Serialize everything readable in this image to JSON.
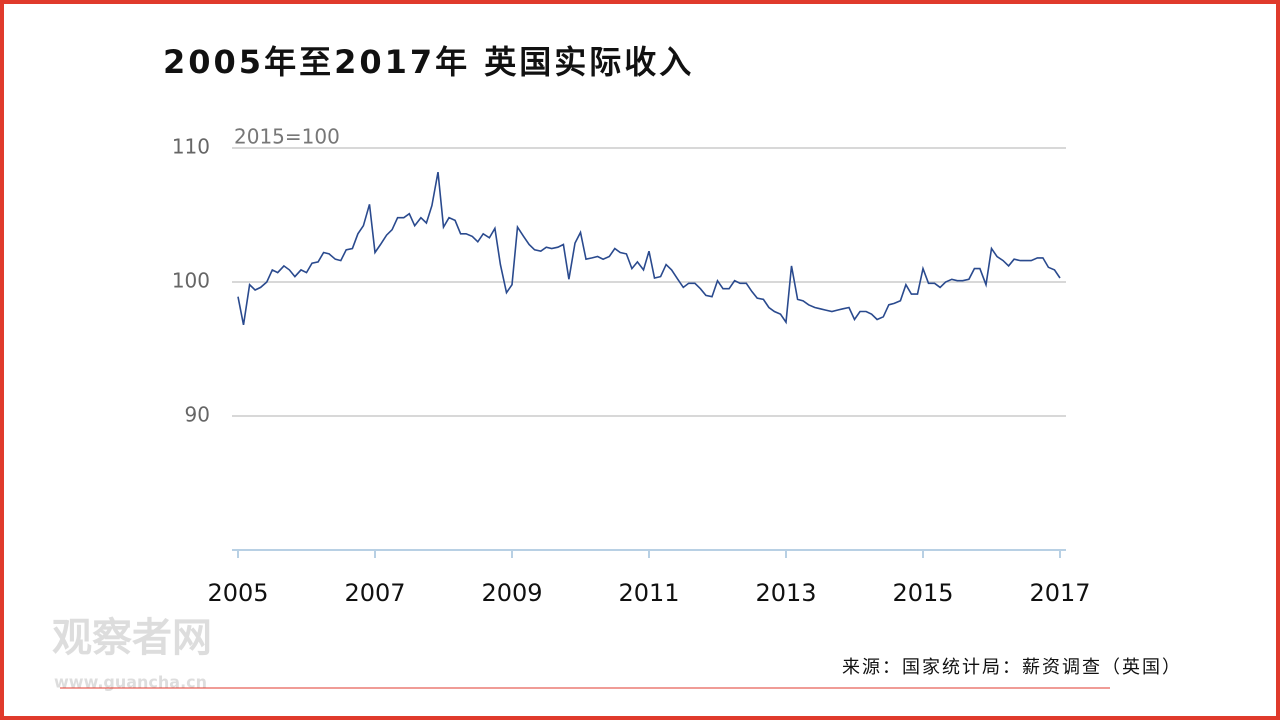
{
  "chart_data": {
    "type": "line",
    "title": "2005年至2017年 英国实际收入",
    "annotation": "2015=100",
    "source": "来源：国家统计局：薪资调查（英国）",
    "watermark": "观察者网",
    "watermark_url": "www.guancha.cn",
    "color": "#2a4a8e",
    "grid": true,
    "x": [
      2005,
      2005.08,
      2005.17,
      2005.25,
      2005.33,
      2005.42,
      2005.5,
      2005.58,
      2005.67,
      2005.75,
      2005.83,
      2005.92,
      2006,
      2006.08,
      2006.17,
      2006.25,
      2006.33,
      2006.42,
      2006.5,
      2006.58,
      2006.67,
      2006.75,
      2006.83,
      2006.92,
      2007,
      2007.08,
      2007.17,
      2007.25,
      2007.33,
      2007.42,
      2007.5,
      2007.58,
      2007.67,
      2007.75,
      2007.83,
      2007.92,
      2008,
      2008.08,
      2008.17,
      2008.25,
      2008.33,
      2008.42,
      2008.5,
      2008.58,
      2008.67,
      2008.75,
      2008.83,
      2008.92,
      2009,
      2009.08,
      2009.17,
      2009.25,
      2009.33,
      2009.42,
      2009.5,
      2009.58,
      2009.67,
      2009.75,
      2009.83,
      2009.92,
      2010,
      2010.08,
      2010.17,
      2010.25,
      2010.33,
      2010.42,
      2010.5,
      2010.58,
      2010.67,
      2010.75,
      2010.83,
      2010.92,
      2011,
      2011.08,
      2011.17,
      2011.25,
      2011.33,
      2011.42,
      2011.5,
      2011.58,
      2011.67,
      2011.75,
      2011.83,
      2011.92,
      2012,
      2012.08,
      2012.17,
      2012.25,
      2012.33,
      2012.42,
      2012.5,
      2012.58,
      2012.67,
      2012.75,
      2012.83,
      2012.92,
      2013,
      2013.08,
      2013.17,
      2013.25,
      2013.33,
      2013.42,
      2013.5,
      2013.58,
      2013.67,
      2013.75,
      2013.83,
      2013.92,
      2014,
      2014.08,
      2014.17,
      2014.25,
      2014.33,
      2014.42,
      2014.5,
      2014.58,
      2014.67,
      2014.75,
      2014.83,
      2014.92,
      2015,
      2015.08,
      2015.17,
      2015.25,
      2015.33,
      2015.42,
      2015.5,
      2015.58,
      2015.67,
      2015.75,
      2015.83,
      2015.92,
      2016,
      2016.08,
      2016.17,
      2016.25,
      2016.33,
      2016.42,
      2016.5,
      2016.58,
      2016.67,
      2016.75,
      2016.83,
      2016.92,
      2017
    ],
    "values": [
      98.9,
      96.8,
      99.8,
      99.4,
      99.6,
      100.0,
      100.9,
      100.7,
      101.2,
      100.9,
      100.4,
      100.9,
      100.7,
      101.4,
      101.5,
      102.2,
      102.1,
      101.7,
      101.6,
      102.4,
      102.5,
      103.6,
      104.2,
      105.8,
      102.2,
      102.8,
      103.5,
      103.9,
      104.8,
      104.8,
      105.1,
      104.2,
      104.8,
      104.4,
      105.7,
      108.2,
      104.1,
      104.8,
      104.6,
      103.6,
      103.6,
      103.4,
      103.0,
      103.6,
      103.3,
      104.0,
      101.3,
      99.2,
      99.8,
      104.1,
      103.4,
      102.8,
      102.4,
      102.3,
      102.6,
      102.5,
      102.6,
      102.8,
      100.2,
      102.9,
      103.7,
      101.7,
      101.8,
      101.9,
      101.7,
      101.9,
      102.5,
      102.2,
      102.1,
      101.0,
      101.5,
      100.9,
      102.3,
      100.3,
      100.4,
      101.3,
      100.9,
      100.2,
      99.6,
      99.9,
      99.9,
      99.5,
      99.0,
      98.9,
      100.1,
      99.5,
      99.5,
      100.1,
      99.9,
      99.9,
      99.3,
      98.8,
      98.7,
      98.1,
      97.8,
      97.6,
      97.0,
      101.2,
      98.7,
      98.6,
      98.3,
      98.1,
      98.0,
      97.9,
      97.8,
      97.9,
      98.0,
      98.1,
      97.2,
      97.8,
      97.8,
      97.6,
      97.2,
      97.4,
      98.3,
      98.4,
      98.6,
      99.8,
      99.1,
      99.1,
      101.0,
      99.9,
      99.9,
      99.6,
      100.0,
      100.2,
      100.1,
      100.1,
      100.2,
      101.0,
      101.0,
      99.8,
      102.5,
      101.9,
      101.6,
      101.2,
      101.7,
      101.6,
      101.6,
      101.6,
      101.8,
      101.8,
      101.1,
      100.9,
      100.3
    ],
    "xlim": [
      2005,
      2017
    ],
    "xticks": [
      2005,
      2007,
      2009,
      2011,
      2013,
      2015,
      2017
    ],
    "ylim": [
      80,
      110
    ],
    "yticks": [
      90,
      100,
      110
    ]
  }
}
